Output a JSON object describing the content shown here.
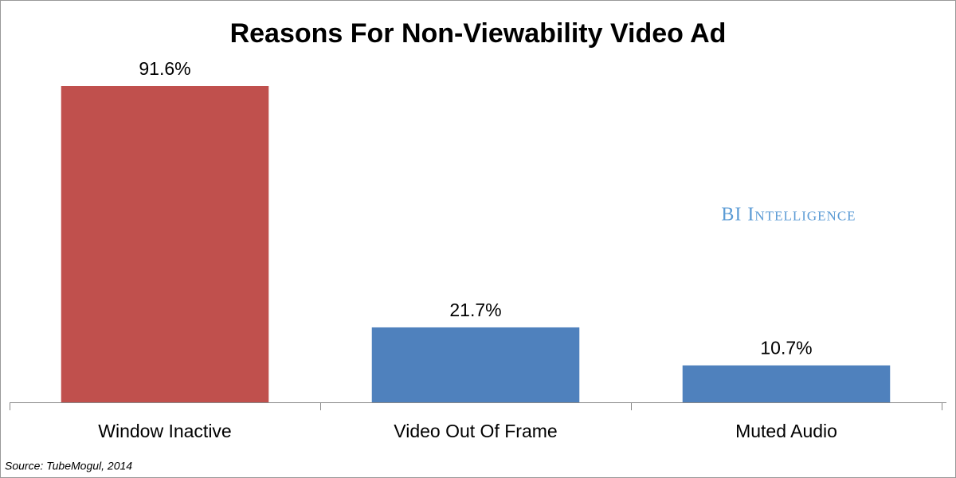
{
  "chart_data": {
    "type": "bar",
    "title": "Reasons For Non-Viewability Video Ad",
    "categories": [
      "Window Inactive",
      "Video Out Of Frame",
      "Muted Audio"
    ],
    "values": [
      91.6,
      21.7,
      10.7
    ],
    "value_labels": [
      "91.6%",
      "21.7%",
      "10.7%"
    ],
    "colors": [
      "#c0504d",
      "#4f81bd",
      "#4f81bd"
    ],
    "watermark": "BI Intelligence",
    "source": "Source: TubeMogul, 2014"
  }
}
